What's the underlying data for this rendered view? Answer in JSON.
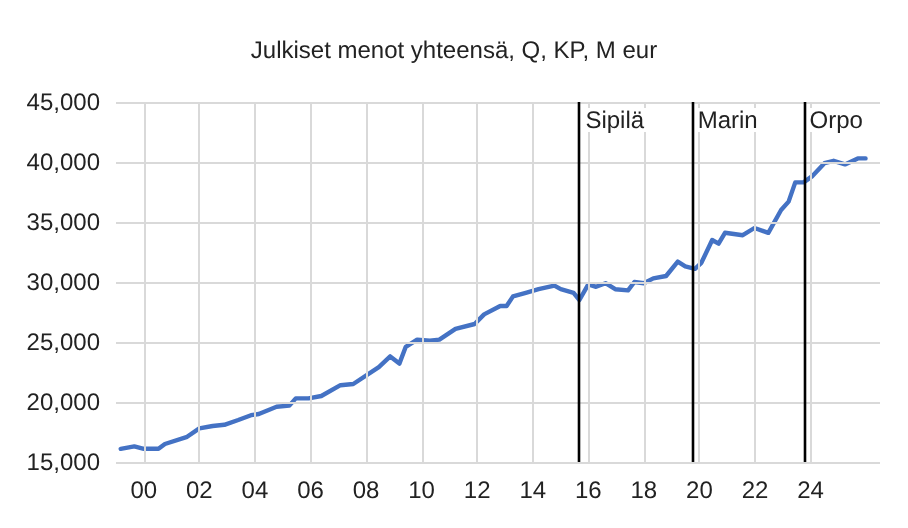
{
  "chart_data": {
    "type": "line",
    "title": "Julkiset menot yhteensä, Q, KP, M eur",
    "x": [
      -0.83,
      -0.34,
      0.0,
      0.53,
      0.76,
      1.56,
      2.0,
      2.48,
      2.9,
      3.4,
      3.86,
      4.14,
      4.78,
      5.24,
      5.47,
      5.93,
      6.39,
      7.08,
      7.54,
      8.46,
      8.87,
      9.2,
      9.43,
      9.84,
      10.3,
      10.64,
      11.22,
      11.91,
      12.25,
      12.83,
      13.06,
      13.29,
      13.75,
      14.21,
      14.78,
      15.01,
      15.47,
      15.68,
      16.0,
      16.28,
      16.62,
      16.97,
      17.43,
      17.66,
      18.0,
      18.34,
      18.8,
      19.22,
      19.49,
      19.84,
      20.07,
      20.46,
      20.69,
      20.92,
      21.56,
      21.98,
      22.48,
      22.94,
      23.21,
      23.45,
      23.75,
      24.05,
      24.5,
      24.83,
      25.24,
      25.7,
      25.98
    ],
    "series": [
      {
        "color": "#4472c4",
        "values": [
          16100,
          16300,
          16100,
          16100,
          16500,
          17100,
          17800,
          18000,
          18100,
          18500,
          18900,
          19000,
          19600,
          19700,
          20300,
          20300,
          20500,
          21400,
          21500,
          22900,
          23800,
          23200,
          24600,
          25200,
          25100,
          25200,
          26100,
          26500,
          27300,
          28000,
          28000,
          28800,
          29100,
          29400,
          29700,
          29400,
          29100,
          28500,
          29800,
          29600,
          29900,
          29400,
          29300,
          30000,
          29900,
          30300,
          30500,
          31700,
          31300,
          31100,
          31600,
          33500,
          33200,
          34100,
          33900,
          34500,
          34100,
          36000,
          36700,
          38300,
          38300,
          38800,
          39900,
          40100,
          39800,
          40300,
          40300
        ]
      }
    ],
    "xlim": [
      -1,
      26.5
    ],
    "xticks": [
      {
        "value": 0,
        "label": "00"
      },
      {
        "value": 2,
        "label": "02"
      },
      {
        "value": 4,
        "label": "04"
      },
      {
        "value": 6,
        "label": "06"
      },
      {
        "value": 8,
        "label": "08"
      },
      {
        "value": 10,
        "label": "10"
      },
      {
        "value": 12,
        "label": "12"
      },
      {
        "value": 14,
        "label": "14"
      },
      {
        "value": 16,
        "label": "16"
      },
      {
        "value": 18,
        "label": "18"
      },
      {
        "value": 20,
        "label": "20"
      },
      {
        "value": 22,
        "label": "22"
      },
      {
        "value": 24,
        "label": "24"
      }
    ],
    "ylim": [
      15000,
      45000
    ],
    "yticks": [
      {
        "value": 15000,
        "label": "15,000"
      },
      {
        "value": 20000,
        "label": "20,000"
      },
      {
        "value": 25000,
        "label": "25,000"
      },
      {
        "value": 30000,
        "label": "30,000"
      },
      {
        "value": 35000,
        "label": "35,000"
      },
      {
        "value": 40000,
        "label": "40,000"
      },
      {
        "value": 45000,
        "label": "45,000"
      }
    ],
    "ref_lines": [
      {
        "axis": "x",
        "value": 15.68,
        "label": "Sipilä",
        "color": "#000000"
      },
      {
        "axis": "x",
        "value": 19.72,
        "label": "Marin",
        "color": "#000000"
      },
      {
        "axis": "x",
        "value": 23.75,
        "label": "Orpo",
        "color": "#000000"
      }
    ],
    "grid": true,
    "marker": "none",
    "line_style": "solid"
  }
}
